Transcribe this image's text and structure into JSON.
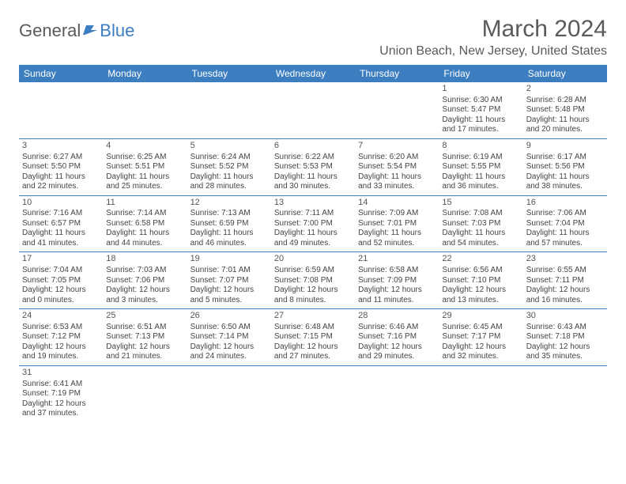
{
  "logo": {
    "text1": "General",
    "text2": "Blue"
  },
  "title": "March 2024",
  "subtitle": "Union Beach, New Jersey, United States",
  "colors": {
    "header_bg": "#3c7ebf",
    "header_fg": "#ffffff",
    "rule": "#3c7ebf",
    "text": "#444444"
  },
  "day_headers": [
    "Sunday",
    "Monday",
    "Tuesday",
    "Wednesday",
    "Thursday",
    "Friday",
    "Saturday"
  ],
  "weeks": [
    [
      null,
      null,
      null,
      null,
      null,
      {
        "n": "1",
        "sr": "Sunrise: 6:30 AM",
        "ss": "Sunset: 5:47 PM",
        "d1": "Daylight: 11 hours",
        "d2": "and 17 minutes."
      },
      {
        "n": "2",
        "sr": "Sunrise: 6:28 AM",
        "ss": "Sunset: 5:48 PM",
        "d1": "Daylight: 11 hours",
        "d2": "and 20 minutes."
      }
    ],
    [
      {
        "n": "3",
        "sr": "Sunrise: 6:27 AM",
        "ss": "Sunset: 5:50 PM",
        "d1": "Daylight: 11 hours",
        "d2": "and 22 minutes."
      },
      {
        "n": "4",
        "sr": "Sunrise: 6:25 AM",
        "ss": "Sunset: 5:51 PM",
        "d1": "Daylight: 11 hours",
        "d2": "and 25 minutes."
      },
      {
        "n": "5",
        "sr": "Sunrise: 6:24 AM",
        "ss": "Sunset: 5:52 PM",
        "d1": "Daylight: 11 hours",
        "d2": "and 28 minutes."
      },
      {
        "n": "6",
        "sr": "Sunrise: 6:22 AM",
        "ss": "Sunset: 5:53 PM",
        "d1": "Daylight: 11 hours",
        "d2": "and 30 minutes."
      },
      {
        "n": "7",
        "sr": "Sunrise: 6:20 AM",
        "ss": "Sunset: 5:54 PM",
        "d1": "Daylight: 11 hours",
        "d2": "and 33 minutes."
      },
      {
        "n": "8",
        "sr": "Sunrise: 6:19 AM",
        "ss": "Sunset: 5:55 PM",
        "d1": "Daylight: 11 hours",
        "d2": "and 36 minutes."
      },
      {
        "n": "9",
        "sr": "Sunrise: 6:17 AM",
        "ss": "Sunset: 5:56 PM",
        "d1": "Daylight: 11 hours",
        "d2": "and 38 minutes."
      }
    ],
    [
      {
        "n": "10",
        "sr": "Sunrise: 7:16 AM",
        "ss": "Sunset: 6:57 PM",
        "d1": "Daylight: 11 hours",
        "d2": "and 41 minutes."
      },
      {
        "n": "11",
        "sr": "Sunrise: 7:14 AM",
        "ss": "Sunset: 6:58 PM",
        "d1": "Daylight: 11 hours",
        "d2": "and 44 minutes."
      },
      {
        "n": "12",
        "sr": "Sunrise: 7:13 AM",
        "ss": "Sunset: 6:59 PM",
        "d1": "Daylight: 11 hours",
        "d2": "and 46 minutes."
      },
      {
        "n": "13",
        "sr": "Sunrise: 7:11 AM",
        "ss": "Sunset: 7:00 PM",
        "d1": "Daylight: 11 hours",
        "d2": "and 49 minutes."
      },
      {
        "n": "14",
        "sr": "Sunrise: 7:09 AM",
        "ss": "Sunset: 7:01 PM",
        "d1": "Daylight: 11 hours",
        "d2": "and 52 minutes."
      },
      {
        "n": "15",
        "sr": "Sunrise: 7:08 AM",
        "ss": "Sunset: 7:03 PM",
        "d1": "Daylight: 11 hours",
        "d2": "and 54 minutes."
      },
      {
        "n": "16",
        "sr": "Sunrise: 7:06 AM",
        "ss": "Sunset: 7:04 PM",
        "d1": "Daylight: 11 hours",
        "d2": "and 57 minutes."
      }
    ],
    [
      {
        "n": "17",
        "sr": "Sunrise: 7:04 AM",
        "ss": "Sunset: 7:05 PM",
        "d1": "Daylight: 12 hours",
        "d2": "and 0 minutes."
      },
      {
        "n": "18",
        "sr": "Sunrise: 7:03 AM",
        "ss": "Sunset: 7:06 PM",
        "d1": "Daylight: 12 hours",
        "d2": "and 3 minutes."
      },
      {
        "n": "19",
        "sr": "Sunrise: 7:01 AM",
        "ss": "Sunset: 7:07 PM",
        "d1": "Daylight: 12 hours",
        "d2": "and 5 minutes."
      },
      {
        "n": "20",
        "sr": "Sunrise: 6:59 AM",
        "ss": "Sunset: 7:08 PM",
        "d1": "Daylight: 12 hours",
        "d2": "and 8 minutes."
      },
      {
        "n": "21",
        "sr": "Sunrise: 6:58 AM",
        "ss": "Sunset: 7:09 PM",
        "d1": "Daylight: 12 hours",
        "d2": "and 11 minutes."
      },
      {
        "n": "22",
        "sr": "Sunrise: 6:56 AM",
        "ss": "Sunset: 7:10 PM",
        "d1": "Daylight: 12 hours",
        "d2": "and 13 minutes."
      },
      {
        "n": "23",
        "sr": "Sunrise: 6:55 AM",
        "ss": "Sunset: 7:11 PM",
        "d1": "Daylight: 12 hours",
        "d2": "and 16 minutes."
      }
    ],
    [
      {
        "n": "24",
        "sr": "Sunrise: 6:53 AM",
        "ss": "Sunset: 7:12 PM",
        "d1": "Daylight: 12 hours",
        "d2": "and 19 minutes."
      },
      {
        "n": "25",
        "sr": "Sunrise: 6:51 AM",
        "ss": "Sunset: 7:13 PM",
        "d1": "Daylight: 12 hours",
        "d2": "and 21 minutes."
      },
      {
        "n": "26",
        "sr": "Sunrise: 6:50 AM",
        "ss": "Sunset: 7:14 PM",
        "d1": "Daylight: 12 hours",
        "d2": "and 24 minutes."
      },
      {
        "n": "27",
        "sr": "Sunrise: 6:48 AM",
        "ss": "Sunset: 7:15 PM",
        "d1": "Daylight: 12 hours",
        "d2": "and 27 minutes."
      },
      {
        "n": "28",
        "sr": "Sunrise: 6:46 AM",
        "ss": "Sunset: 7:16 PM",
        "d1": "Daylight: 12 hours",
        "d2": "and 29 minutes."
      },
      {
        "n": "29",
        "sr": "Sunrise: 6:45 AM",
        "ss": "Sunset: 7:17 PM",
        "d1": "Daylight: 12 hours",
        "d2": "and 32 minutes."
      },
      {
        "n": "30",
        "sr": "Sunrise: 6:43 AM",
        "ss": "Sunset: 7:18 PM",
        "d1": "Daylight: 12 hours",
        "d2": "and 35 minutes."
      }
    ],
    [
      {
        "n": "31",
        "sr": "Sunrise: 6:41 AM",
        "ss": "Sunset: 7:19 PM",
        "d1": "Daylight: 12 hours",
        "d2": "and 37 minutes."
      },
      null,
      null,
      null,
      null,
      null,
      null
    ]
  ]
}
